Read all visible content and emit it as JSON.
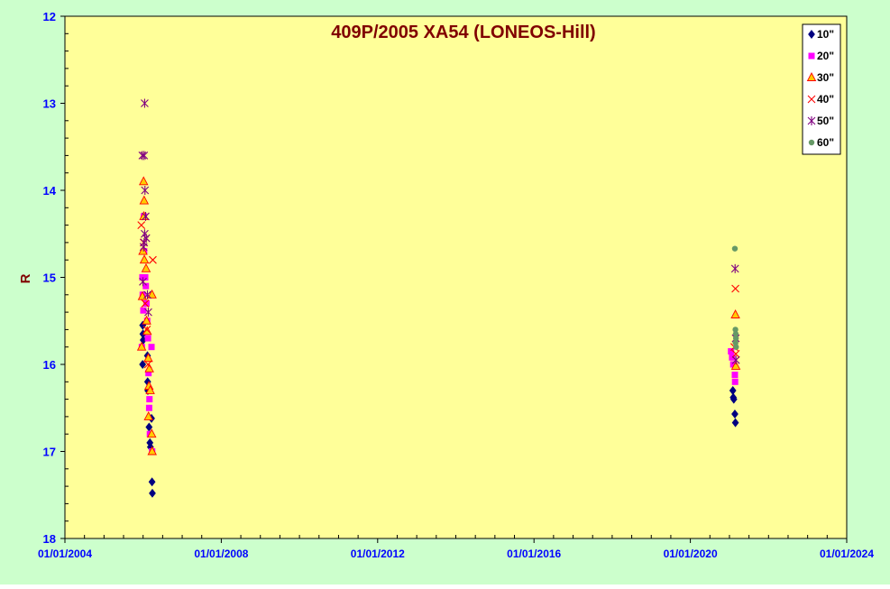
{
  "colors": {
    "outer_bg": "#ccffcc",
    "plot_bg": "#ffff99",
    "title": "#800000",
    "ylabel": "#800000",
    "tick_labels": "#0000ff",
    "s10": "#000080",
    "s20": "#ff00ff",
    "s30_fill": "#ffcc00",
    "s30_stroke": "#ff0000",
    "s40": "#ff0000",
    "s50": "#800080",
    "s60": "#669966"
  },
  "chart_data": {
    "type": "scatter",
    "title": "409P/2005 XA54 (LONEOS-Hill)",
    "xlabel": "",
    "ylabel": "R",
    "x_is_date": true,
    "xlim": [
      "2004-01-01",
      "2024-01-01"
    ],
    "ylim": [
      12,
      18
    ],
    "y_inverted": true,
    "xticks": [
      "01/01/2004",
      "01/01/2008",
      "01/01/2012",
      "01/01/2016",
      "01/01/2020",
      "01/01/2024"
    ],
    "yticks": [
      "12",
      "13",
      "14",
      "15",
      "16",
      "17",
      "18"
    ],
    "grid": false,
    "legend_position": "top-right",
    "series": [
      {
        "name": "10\"",
        "marker": "diamond",
        "points": [
          [
            "2005-12-28",
            15.55
          ],
          [
            "2005-12-30",
            15.65
          ],
          [
            "2006-01-02",
            15.72
          ],
          [
            "2005-12-27",
            16.0
          ],
          [
            "2006-02-10",
            15.9
          ],
          [
            "2006-02-12",
            16.2
          ],
          [
            "2006-02-14",
            16.3
          ],
          [
            "2006-02-25",
            16.72
          ],
          [
            "2006-03-05",
            16.9
          ],
          [
            "2006-03-10",
            16.95
          ],
          [
            "2006-03-20",
            16.62
          ],
          [
            "2006-03-25",
            17.35
          ],
          [
            "2006-03-28",
            17.48
          ],
          [
            "2021-02-01",
            16.3
          ],
          [
            "2021-02-05",
            16.38
          ],
          [
            "2021-02-10",
            16.4
          ],
          [
            "2021-02-20",
            16.57
          ],
          [
            "2021-02-25",
            16.67
          ]
        ]
      },
      {
        "name": "20\"",
        "marker": "square",
        "points": [
          [
            "2005-12-25",
            15.0
          ],
          [
            "2005-12-28",
            15.2
          ],
          [
            "2006-01-03",
            15.38
          ],
          [
            "2006-01-08",
            14.3
          ],
          [
            "2006-01-10",
            14.7
          ],
          [
            "2006-01-20",
            15.0
          ],
          [
            "2006-01-26",
            15.1
          ],
          [
            "2006-02-01",
            15.3
          ],
          [
            "2006-02-08",
            15.5
          ],
          [
            "2006-02-15",
            15.7
          ],
          [
            "2006-02-20",
            16.1
          ],
          [
            "2006-03-01",
            16.4
          ],
          [
            "2006-02-26",
            16.5
          ],
          [
            "2006-03-05",
            16.8
          ],
          [
            "2006-03-20",
            15.8
          ],
          [
            "2006-03-26",
            17.0
          ],
          [
            "2005-12-20",
            15.8
          ],
          [
            "2021-01-15",
            15.85
          ],
          [
            "2021-01-25",
            15.92
          ],
          [
            "2021-02-05",
            16.0
          ],
          [
            "2021-02-20",
            16.12
          ],
          [
            "2021-02-22",
            16.2
          ]
        ]
      },
      {
        "name": "30\"",
        "marker": "triangle",
        "points": [
          [
            "2006-01-05",
            13.9
          ],
          [
            "2006-01-10",
            14.12
          ],
          [
            "2006-01-08",
            14.3
          ],
          [
            "2005-12-30",
            14.7
          ],
          [
            "2006-01-12",
            14.8
          ],
          [
            "2006-01-28",
            14.9
          ],
          [
            "2005-12-25",
            15.22
          ],
          [
            "2006-03-25",
            15.2
          ],
          [
            "2006-02-02",
            15.5
          ],
          [
            "2006-02-08",
            15.62
          ],
          [
            "2005-12-18",
            15.8
          ],
          [
            "2006-02-18",
            15.93
          ],
          [
            "2006-02-28",
            16.05
          ],
          [
            "2006-02-24",
            16.25
          ],
          [
            "2006-03-08",
            16.3
          ],
          [
            "2006-02-20",
            16.6
          ],
          [
            "2006-03-22",
            16.8
          ],
          [
            "2006-03-26",
            17.0
          ],
          [
            "2021-02-25",
            15.43
          ],
          [
            "2021-03-01",
            16.02
          ]
        ]
      },
      {
        "name": "40\"",
        "marker": "x",
        "points": [
          [
            "2005-12-15",
            14.4
          ],
          [
            "2006-01-06",
            14.6
          ],
          [
            "2006-04-01",
            14.8
          ],
          [
            "2006-01-20",
            15.3
          ],
          [
            "2006-02-05",
            15.6
          ],
          [
            "2006-02-15",
            16.0
          ],
          [
            "2021-02-25",
            15.13
          ],
          [
            "2021-02-15",
            15.8
          ],
          [
            "2021-03-01",
            15.88
          ]
        ]
      },
      {
        "name": "50\"",
        "marker": "asterisk",
        "points": [
          [
            "2006-01-15",
            13.0
          ],
          [
            "2005-12-25",
            13.6
          ],
          [
            "2006-01-10",
            13.6
          ],
          [
            "2006-01-18",
            14.0
          ],
          [
            "2006-01-24",
            14.3
          ],
          [
            "2006-01-15",
            14.5
          ],
          [
            "2006-01-30",
            14.55
          ],
          [
            "2006-01-10",
            14.6
          ],
          [
            "2006-01-05",
            14.65
          ],
          [
            "2006-02-10",
            15.2
          ],
          [
            "2006-02-18",
            15.4
          ],
          [
            "2005-12-30",
            15.05
          ],
          [
            "2021-02-22",
            14.9
          ],
          [
            "2021-02-28",
            15.7
          ],
          [
            "2021-03-02",
            15.95
          ]
        ]
      },
      {
        "name": "60\"",
        "marker": "circle",
        "points": [
          [
            "2021-02-20",
            14.67
          ],
          [
            "2021-02-25",
            15.6
          ],
          [
            "2021-02-28",
            15.65
          ],
          [
            "2021-03-02",
            15.7
          ],
          [
            "2021-02-26",
            15.75
          ],
          [
            "2021-03-03",
            15.8
          ]
        ]
      }
    ]
  }
}
